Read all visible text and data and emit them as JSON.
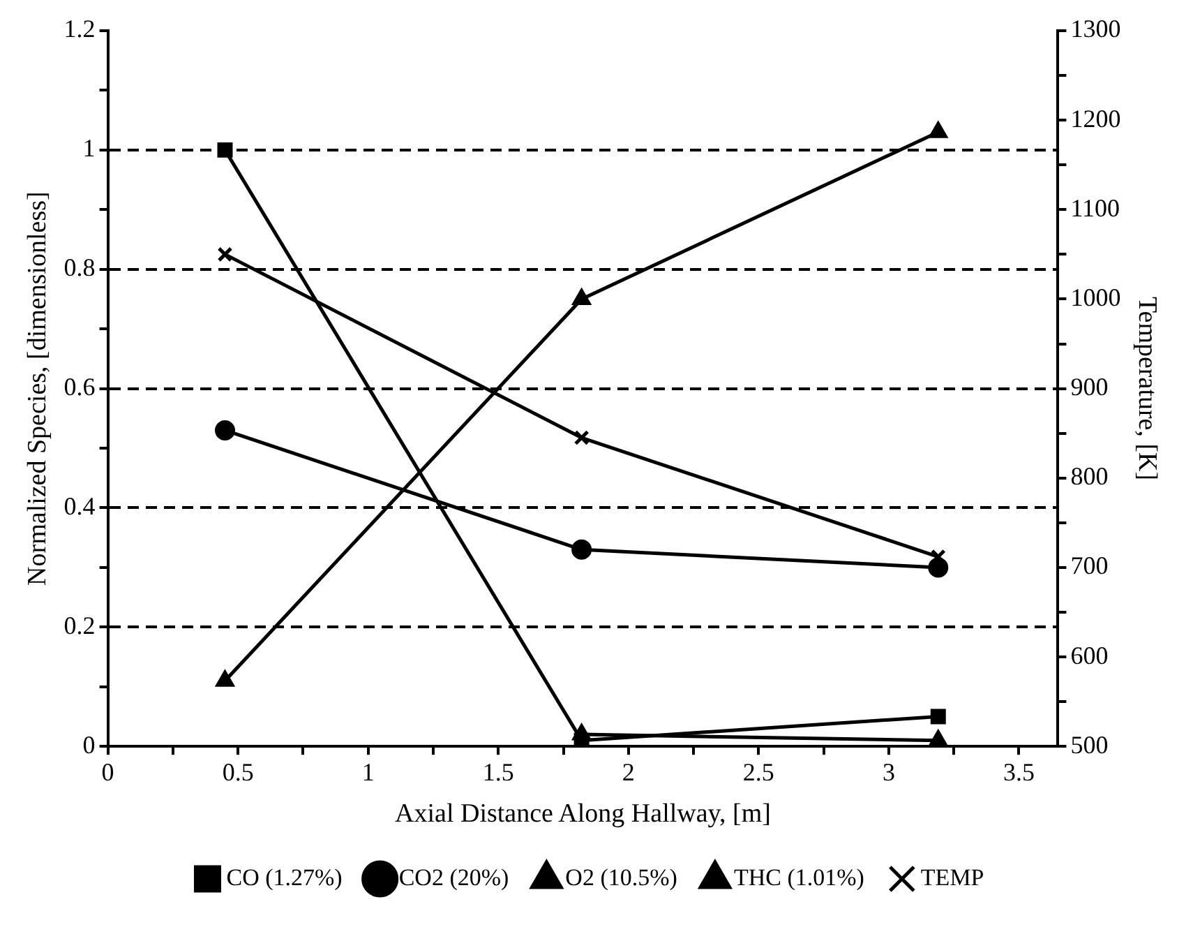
{
  "chart_data": {
    "type": "line",
    "xlabel": "Axial Distance Along Hallway, [m]",
    "ylabel": "Normalized Species, [dimensionless]",
    "y2label": "Temperature, [K]",
    "x": [
      0.45,
      1.82,
      3.19
    ],
    "series": [
      {
        "name": "CO (1.27%)",
        "color": "#000000",
        "marker": "square",
        "values": [
          1,
          0.01,
          0.05
        ]
      },
      {
        "name": "CO2 (20%)",
        "color": "#000000",
        "marker": "circle",
        "values": [
          0.53,
          0.33,
          0.3
        ]
      },
      {
        "name": "O2 (10.5%)",
        "color": "#000000",
        "marker": "triangle",
        "values": [
          0.11,
          0.75,
          1.03
        ]
      },
      {
        "name": "THC (1.01%)",
        "color": "#000000",
        "marker": "triangle",
        "values": [
          null,
          0.02,
          0.01
        ]
      },
      {
        "name": "TEMP",
        "color": "#000000",
        "marker": "cross",
        "axis": "y2",
        "values": [
          1050,
          845,
          712
        ]
      }
    ],
    "xlim": [
      0,
      3.65
    ],
    "xticks": [
      0,
      {
        "value": 0.25,
        "label": null
      },
      0.5,
      {
        "value": 0.75,
        "label": null
      },
      1,
      {
        "value": 1.25,
        "label": null
      },
      1.5,
      {
        "value": 1.75,
        "label": null
      },
      2,
      {
        "value": 2.25,
        "label": null
      },
      2.5,
      {
        "value": 2.75,
        "label": null
      },
      3,
      {
        "value": 3.25,
        "label": null
      },
      3.5
    ],
    "ylim": [
      0,
      1.2
    ],
    "yticks": [
      0,
      {
        "value": 0.1,
        "label": null
      },
      0.2,
      {
        "value": 0.3,
        "label": null
      },
      0.4,
      {
        "value": 0.5,
        "label": null
      },
      0.6,
      {
        "value": 0.7,
        "label": null
      },
      0.8,
      {
        "value": 0.9,
        "label": null
      },
      1,
      {
        "value": 1.1,
        "label": null
      },
      1.2
    ],
    "y2lim": [
      500,
      1300
    ],
    "y2ticks": [
      500,
      {
        "value": 550,
        "label": null
      },
      600,
      {
        "value": 650,
        "label": null
      },
      700,
      {
        "value": 750,
        "label": null
      },
      800,
      {
        "value": 850,
        "label": null
      },
      900,
      {
        "value": 950,
        "label": null
      },
      1000,
      {
        "value": 1050,
        "label": null
      },
      1100,
      {
        "value": 1150,
        "label": null
      },
      1200,
      {
        "value": 1250,
        "label": null
      },
      1300
    ],
    "grid": "y",
    "legend": "bottom"
  }
}
